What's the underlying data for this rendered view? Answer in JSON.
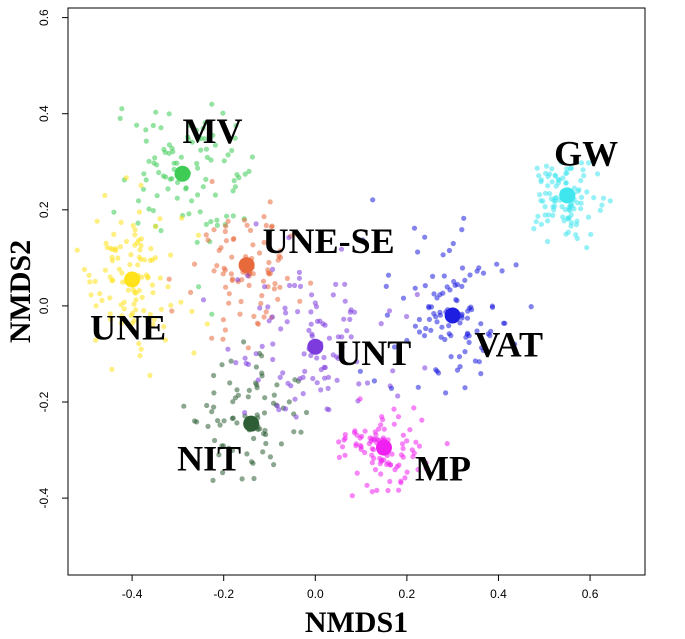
{
  "chart_data": {
    "type": "scatter",
    "title": "",
    "xlabel": "NMDS1",
    "ylabel": "NMDS2",
    "xlim": [
      -0.54,
      0.72
    ],
    "ylim": [
      -0.56,
      0.62
    ],
    "xticks": [
      -0.4,
      -0.2,
      0.0,
      0.2,
      0.4,
      0.6
    ],
    "yticks": [
      -0.4,
      -0.2,
      0.0,
      0.2,
      0.4,
      0.6
    ],
    "xtick_labels": [
      "-0.4",
      "-0.2",
      "0.0",
      "0.2",
      "0.4",
      "0.6"
    ],
    "ytick_labels": [
      "-0.4",
      "-0.2",
      "0.0",
      "0.2",
      "0.4",
      "0.6"
    ],
    "grid": false,
    "groups": [
      {
        "name": "MV",
        "color": "#3ecc55",
        "centroid": {
          "x": -0.29,
          "y": 0.275
        },
        "spread": {
          "x": 0.11,
          "y": 0.13
        },
        "n": 100
      },
      {
        "name": "UNE",
        "color": "#ffe21a",
        "centroid": {
          "x": -0.4,
          "y": 0.055
        },
        "spread": {
          "x": 0.09,
          "y": 0.11
        },
        "n": 110
      },
      {
        "name": "UNE-SE",
        "color": "#e86a3c",
        "centroid": {
          "x": -0.15,
          "y": 0.085
        },
        "spread": {
          "x": 0.09,
          "y": 0.11
        },
        "n": 90
      },
      {
        "name": "NIT",
        "color": "#2e5e35",
        "centroid": {
          "x": -0.14,
          "y": -0.245
        },
        "spread": {
          "x": 0.09,
          "y": 0.1
        },
        "n": 80
      },
      {
        "name": "UNT",
        "color": "#7d3bde",
        "centroid": {
          "x": 0.0,
          "y": -0.085
        },
        "spread": {
          "x": 0.13,
          "y": 0.13
        },
        "n": 110
      },
      {
        "name": "VAT",
        "color": "#1e1ee0",
        "centroid": {
          "x": 0.3,
          "y": -0.02
        },
        "spread": {
          "x": 0.12,
          "y": 0.12
        },
        "n": 110
      },
      {
        "name": "MP",
        "color": "#f020f0",
        "centroid": {
          "x": 0.15,
          "y": -0.295
        },
        "spread": {
          "x": 0.09,
          "y": 0.07
        },
        "n": 100
      },
      {
        "name": "GW",
        "color": "#3fe6ee",
        "centroid": {
          "x": 0.55,
          "y": 0.23
        },
        "spread": {
          "x": 0.06,
          "y": 0.07
        },
        "n": 110
      }
    ],
    "centroid_labels": [
      {
        "text": "MV",
        "group": "MV"
      },
      {
        "text": "UNE",
        "group": "UNE"
      },
      {
        "text": "UNE-SE",
        "group": "UNE-SE"
      },
      {
        "text": "NIT",
        "group": "NIT"
      },
      {
        "text": "UNT",
        "group": "UNT"
      },
      {
        "text": "VAT",
        "group": "VAT"
      },
      {
        "text": "MP",
        "group": "MP"
      },
      {
        "text": "GW",
        "group": "GW"
      }
    ]
  }
}
